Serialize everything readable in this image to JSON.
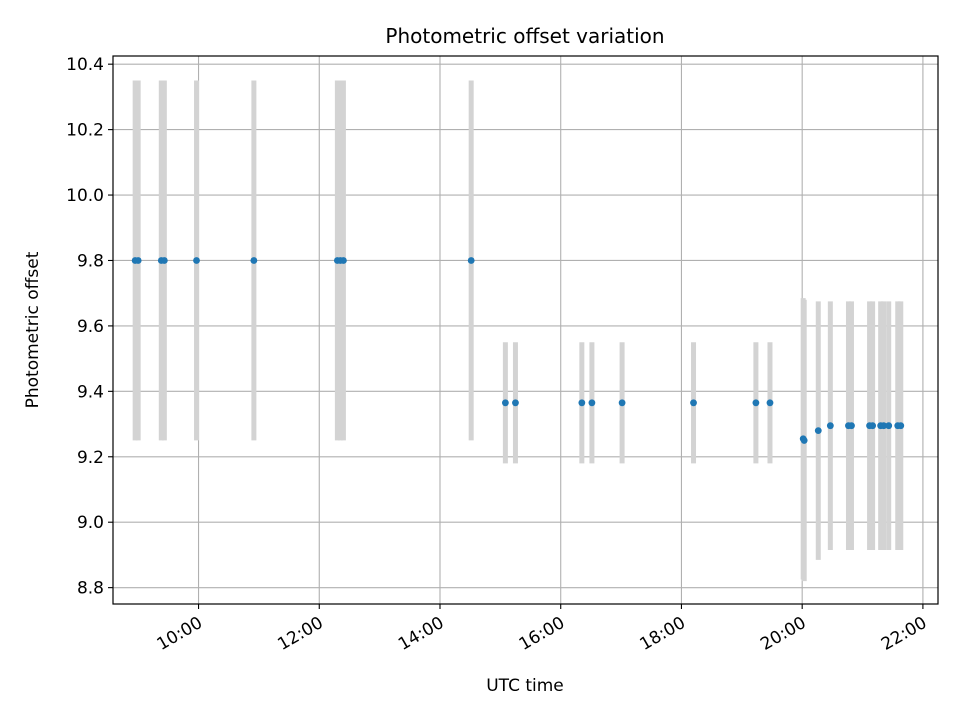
{
  "chart_data": {
    "type": "scatter",
    "title": "Photometric offset variation",
    "xlabel": "UTC time",
    "ylabel": "Photometric offset",
    "x_unit": "hours",
    "xlim": [
      8.583,
      22.25
    ],
    "ylim": [
      8.75,
      10.425
    ],
    "grid": true,
    "x_ticks": [
      {
        "value": 10,
        "label": "10:00"
      },
      {
        "value": 12,
        "label": "12:00"
      },
      {
        "value": 14,
        "label": "14:00"
      },
      {
        "value": 16,
        "label": "16:00"
      },
      {
        "value": 18,
        "label": "18:00"
      },
      {
        "value": 20,
        "label": "20:00"
      },
      {
        "value": 22,
        "label": "22:00"
      }
    ],
    "y_ticks": [
      {
        "value": 8.8,
        "label": "8.8"
      },
      {
        "value": 9.0,
        "label": "9.0"
      },
      {
        "value": 9.2,
        "label": "9.2"
      },
      {
        "value": 9.4,
        "label": "9.4"
      },
      {
        "value": 9.6,
        "label": "9.6"
      },
      {
        "value": 9.8,
        "label": "9.8"
      },
      {
        "value": 10.0,
        "label": "10.0"
      },
      {
        "value": 10.2,
        "label": "10.2"
      },
      {
        "value": 10.4,
        "label": "10.4"
      }
    ],
    "colors": {
      "points": "#1f77b4",
      "errorbars": "#d3d3d3",
      "grid": "#b0b0b0"
    },
    "series": [
      {
        "points": [
          {
            "x": "08:57",
            "y": 9.8,
            "yerr": 0.55
          },
          {
            "x": "09:00",
            "y": 9.8,
            "yerr": 0.55
          },
          {
            "x": "09:23",
            "y": 9.8,
            "yerr": 0.55
          },
          {
            "x": "09:26",
            "y": 9.8,
            "yerr": 0.55
          },
          {
            "x": "09:58",
            "y": 9.8,
            "yerr": 0.55
          },
          {
            "x": "10:55",
            "y": 9.8,
            "yerr": 0.55
          },
          {
            "x": "12:18",
            "y": 9.8,
            "yerr": 0.55
          },
          {
            "x": "12:21",
            "y": 9.8,
            "yerr": 0.55
          },
          {
            "x": "12:24",
            "y": 9.8,
            "yerr": 0.55
          },
          {
            "x": "14:31",
            "y": 9.8,
            "yerr": 0.55
          },
          {
            "x": "15:05",
            "y": 9.365,
            "yerr": 0.185
          },
          {
            "x": "15:15",
            "y": 9.365,
            "yerr": 0.185
          },
          {
            "x": "16:21",
            "y": 9.365,
            "yerr": 0.185
          },
          {
            "x": "16:31",
            "y": 9.365,
            "yerr": 0.185
          },
          {
            "x": "17:01",
            "y": 9.365,
            "yerr": 0.185
          },
          {
            "x": "18:12",
            "y": 9.365,
            "yerr": 0.185
          },
          {
            "x": "19:14",
            "y": 9.365,
            "yerr": 0.185
          },
          {
            "x": "19:28",
            "y": 9.365,
            "yerr": 0.185
          },
          {
            "x": "20:01",
            "y": 9.255,
            "yerr": 0.43
          },
          {
            "x": "20:02",
            "y": 9.25,
            "yerr": 0.43
          },
          {
            "x": "20:16",
            "y": 9.28,
            "yerr": 0.395
          },
          {
            "x": "20:28",
            "y": 9.295,
            "yerr": 0.38
          },
          {
            "x": "20:46",
            "y": 9.295,
            "yerr": 0.38
          },
          {
            "x": "20:49",
            "y": 9.295,
            "yerr": 0.38
          },
          {
            "x": "21:07",
            "y": 9.295,
            "yerr": 0.38
          },
          {
            "x": "21:10",
            "y": 9.295,
            "yerr": 0.38
          },
          {
            "x": "21:18",
            "y": 9.295,
            "yerr": 0.38
          },
          {
            "x": "21:21",
            "y": 9.295,
            "yerr": 0.38
          },
          {
            "x": "21:26",
            "y": 9.295,
            "yerr": 0.38
          },
          {
            "x": "21:35",
            "y": 9.295,
            "yerr": 0.38
          },
          {
            "x": "21:38",
            "y": 9.295,
            "yerr": 0.38
          }
        ]
      }
    ]
  }
}
